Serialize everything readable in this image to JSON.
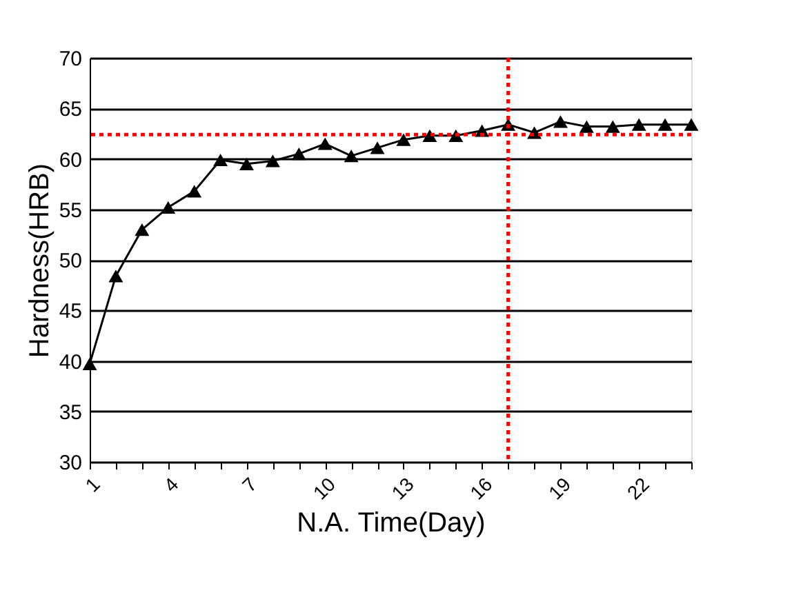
{
  "chart_data": {
    "type": "line",
    "xlabel": "N.A. Time(Day)",
    "ylabel": "Hardness(HRB)",
    "x": [
      1,
      2,
      3,
      4,
      5,
      6,
      7,
      8,
      9,
      10,
      11,
      12,
      13,
      14,
      15,
      16,
      17,
      18,
      19,
      20,
      21,
      22,
      23,
      24
    ],
    "series": [
      {
        "color": "#000000",
        "values": [
          39.7,
          48.4,
          53.0,
          55.2,
          56.8,
          59.9,
          59.5,
          59.8,
          60.5,
          61.5,
          60.3,
          61.1,
          61.9,
          62.3,
          62.3,
          62.8,
          63.4,
          62.6,
          63.7,
          63.2,
          63.2,
          63.4,
          63.4,
          63.4
        ]
      }
    ],
    "xlim": [
      1,
      24
    ],
    "xticks": [
      1,
      {
        "value": 2,
        "label": null
      },
      {
        "value": 3,
        "label": null
      },
      4,
      {
        "value": 5,
        "label": null
      },
      {
        "value": 6,
        "label": null
      },
      7,
      {
        "value": 8,
        "label": null
      },
      {
        "value": 9,
        "label": null
      },
      10,
      {
        "value": 11,
        "label": null
      },
      {
        "value": 12,
        "label": null
      },
      13,
      {
        "value": 14,
        "label": null
      },
      {
        "value": 15,
        "label": null
      },
      16,
      {
        "value": 17,
        "label": null
      },
      {
        "value": 18,
        "label": null
      },
      19,
      {
        "value": 20,
        "label": null
      },
      {
        "value": 21,
        "label": null
      },
      22,
      {
        "value": 23,
        "label": null
      },
      {
        "value": 24,
        "label": null
      }
    ],
    "ylim": [
      30,
      70
    ],
    "yticks": [
      30,
      35,
      40,
      45,
      50,
      55,
      60,
      65,
      70
    ],
    "ref_lines": [
      {
        "axis": "y",
        "value": 62.4,
        "color": "#ff0000",
        "line_style": "dotted"
      },
      {
        "axis": "x",
        "value": 17,
        "color": "#ff0000",
        "line_style": "dotted"
      }
    ],
    "grid": "y",
    "marker": "triangle",
    "line_style": "solid"
  }
}
